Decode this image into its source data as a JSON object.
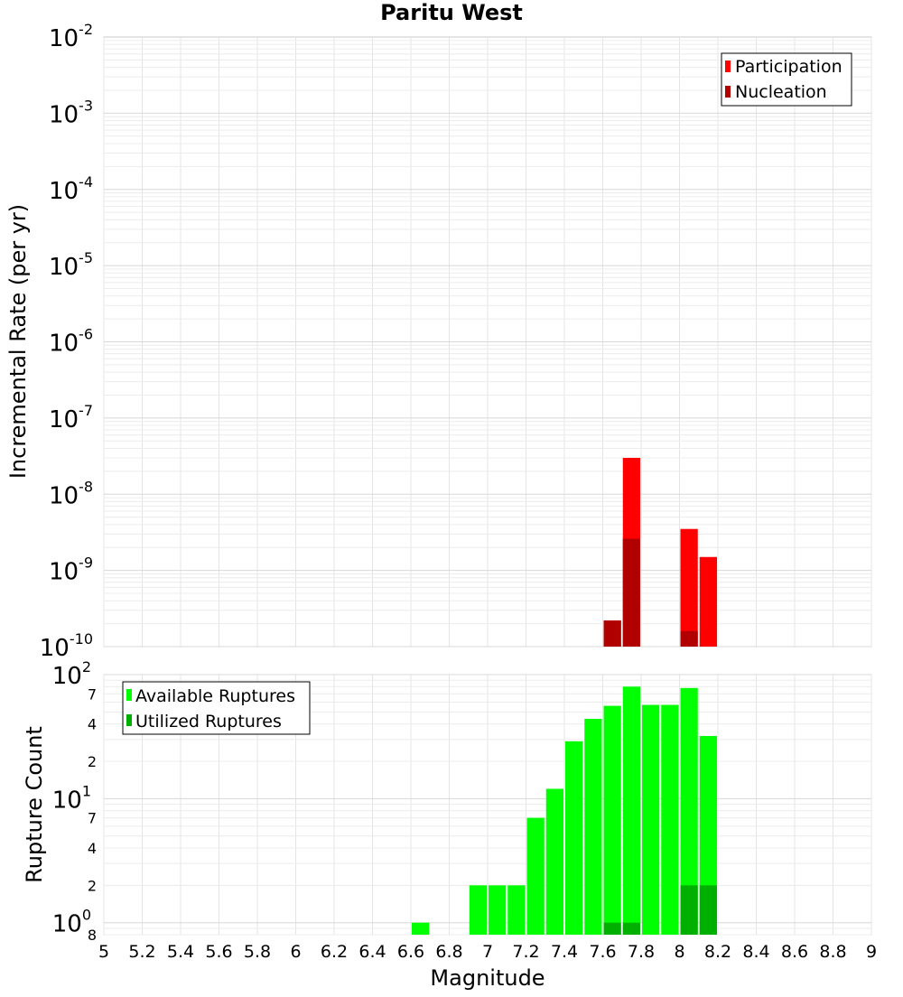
{
  "chart_data": [
    {
      "type": "bar",
      "title": "Paritu West",
      "ylabel": "Incremental Rate (per yr)",
      "xlabel": "",
      "yscale": "log",
      "ylim": [
        1e-10,
        0.01
      ],
      "xlim": [
        5,
        9
      ],
      "bin_width": 0.1,
      "y_ticks": [
        {
          "base": "10",
          "exp": "-2"
        },
        {
          "base": "10",
          "exp": "-3"
        },
        {
          "base": "10",
          "exp": "-4"
        },
        {
          "base": "10",
          "exp": "-5"
        },
        {
          "base": "10",
          "exp": "-6"
        },
        {
          "base": "10",
          "exp": "-7"
        },
        {
          "base": "10",
          "exp": "-8"
        },
        {
          "base": "10",
          "exp": "-9"
        },
        {
          "base": "10",
          "exp": "-10"
        }
      ],
      "grid": true,
      "legend_position": "top-right",
      "series": [
        {
          "name": "Participation",
          "color": "#ff0000",
          "x": [
            7.65,
            7.75,
            8.05,
            8.15
          ],
          "values": [
            2.2e-10,
            3e-08,
            3.5e-09,
            1.5e-09
          ]
        },
        {
          "name": "Nucleation",
          "color": "#b00000",
          "x": [
            7.65,
            7.75,
            8.05
          ],
          "values": [
            2.2e-10,
            2.6e-09,
            1.6e-10
          ]
        }
      ]
    },
    {
      "type": "bar",
      "title": "",
      "ylabel": "Rupture Count",
      "xlabel": "Magnitude",
      "yscale": "log",
      "ylim": [
        0.8,
        100
      ],
      "xlim": [
        5,
        9
      ],
      "bin_width": 0.1,
      "x_ticks": [
        "5",
        "5.2",
        "5.4",
        "5.6",
        "5.8",
        "6",
        "6.2",
        "6.4",
        "6.6",
        "6.8",
        "7",
        "7.2",
        "7.4",
        "7.6",
        "7.8",
        "8",
        "8.2",
        "8.4",
        "8.6",
        "8.8",
        "9"
      ],
      "y_major_ticks": [
        {
          "base": "10",
          "exp": "2"
        },
        {
          "base": "10",
          "exp": "1"
        },
        {
          "base": "10",
          "exp": "0"
        }
      ],
      "y_minor_ticks": [
        {
          "label": "7",
          "value": 70
        },
        {
          "label": "4",
          "value": 40
        },
        {
          "label": "2",
          "value": 20
        },
        {
          "label": "7",
          "value": 7
        },
        {
          "label": "4",
          "value": 4
        },
        {
          "label": "2",
          "value": 2
        },
        {
          "label": "8",
          "value": 0.8
        }
      ],
      "grid": true,
      "legend_position": "top-left",
      "series": [
        {
          "name": "Available Ruptures",
          "color": "#00ff00",
          "x": [
            6.65,
            6.95,
            7.05,
            7.15,
            7.25,
            7.35,
            7.45,
            7.55,
            7.65,
            7.75,
            7.85,
            7.95,
            8.05,
            8.15
          ],
          "values": [
            1,
            2,
            2,
            2,
            7,
            12,
            29,
            44,
            56,
            80,
            57,
            57,
            78,
            32
          ]
        },
        {
          "name": "Utilized Ruptures",
          "color": "#00b000",
          "x": [
            7.65,
            7.75,
            8.05,
            8.15
          ],
          "values": [
            1,
            1,
            2,
            2
          ]
        }
      ]
    }
  ]
}
